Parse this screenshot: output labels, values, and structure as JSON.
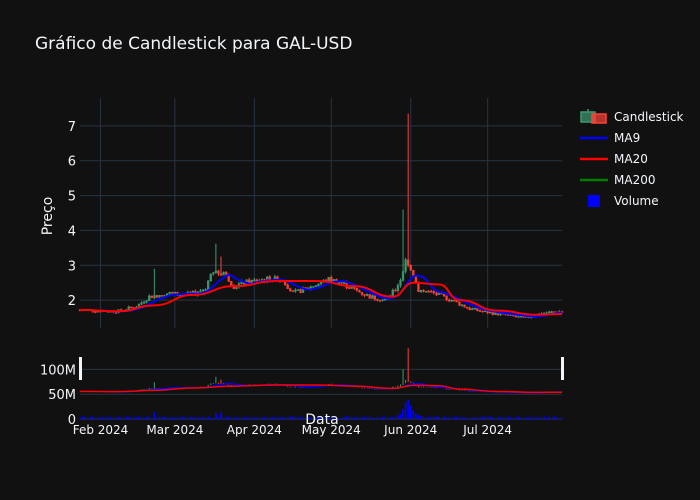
{
  "chart_data": {
    "type": "candlestick",
    "title": "Gráfico de Candlestick para GAL-USD",
    "ylabel": "Preço",
    "xlabel": "Data",
    "price_axis": {
      "ticks": [
        2,
        3,
        4,
        5,
        6,
        7
      ],
      "ylim": [
        1.2,
        7.8
      ]
    },
    "volume_axis": {
      "ticks": [
        0,
        50,
        100
      ],
      "tick_labels": [
        "0",
        "50M",
        "100M"
      ],
      "unit": "M"
    },
    "x_ticks": [
      {
        "date": "2024-02-01",
        "label": "Feb 2024"
      },
      {
        "date": "2024-03-01",
        "label": "Mar 2024"
      },
      {
        "date": "2024-04-01",
        "label": "Apr 2024"
      },
      {
        "date": "2024-05-01",
        "label": "May 2024"
      },
      {
        "date": "2024-06-01",
        "label": "Jun 2024"
      },
      {
        "date": "2024-07-01",
        "label": "Jul 2024"
      }
    ],
    "x_range": [
      "2024-01-24",
      "2024-07-30"
    ],
    "legend": [
      "Candlestick",
      "MA9",
      "MA20",
      "MA200",
      "Volume"
    ],
    "legend_position": "right",
    "colors": {
      "up": "#3d9970",
      "down": "#ff4136",
      "ma9": "#0000ff",
      "ma20": "#ff0000",
      "ma200": "#008000",
      "volume": "#0000ff",
      "grid": "#283442",
      "background": "#111111"
    },
    "ohlc_waypoints": [
      {
        "date": "2024-01-24",
        "close": 1.72
      },
      {
        "date": "2024-01-31",
        "close": 1.7
      },
      {
        "date": "2024-02-08",
        "close": 1.68
      },
      {
        "date": "2024-02-15",
        "close": 1.82
      },
      {
        "date": "2024-02-20",
        "close": 2.1
      },
      {
        "date": "2024-02-27",
        "close": 2.2
      },
      {
        "date": "2024-03-05",
        "close": 2.15
      },
      {
        "date": "2024-03-09",
        "close": 2.2
      },
      {
        "date": "2024-03-13",
        "close": 2.35
      },
      {
        "date": "2024-03-15",
        "close": 2.75
      },
      {
        "date": "2024-03-20",
        "close": 2.8
      },
      {
        "date": "2024-03-24",
        "close": 2.4
      },
      {
        "date": "2024-03-28",
        "close": 2.5
      },
      {
        "date": "2024-04-05",
        "close": 2.6
      },
      {
        "date": "2024-04-12",
        "close": 2.6
      },
      {
        "date": "2024-04-16",
        "close": 2.2
      },
      {
        "date": "2024-04-22",
        "close": 2.35
      },
      {
        "date": "2024-04-30",
        "close": 2.6
      },
      {
        "date": "2024-05-05",
        "close": 2.5
      },
      {
        "date": "2024-05-10",
        "close": 2.3
      },
      {
        "date": "2024-05-16",
        "close": 2.1
      },
      {
        "date": "2024-05-22",
        "close": 2.0
      },
      {
        "date": "2024-05-26",
        "close": 2.3
      },
      {
        "date": "2024-05-28",
        "close": 2.6
      },
      {
        "date": "2024-05-30",
        "close": 3.1
      },
      {
        "date": "2024-06-02",
        "close": 2.75
      },
      {
        "date": "2024-06-04",
        "close": 2.3
      },
      {
        "date": "2024-06-10",
        "close": 2.2
      },
      {
        "date": "2024-06-17",
        "close": 2.0
      },
      {
        "date": "2024-06-24",
        "close": 1.75
      },
      {
        "date": "2024-07-01",
        "close": 1.65
      },
      {
        "date": "2024-07-08",
        "close": 1.58
      },
      {
        "date": "2024-07-15",
        "close": 1.48
      },
      {
        "date": "2024-07-22",
        "close": 1.62
      },
      {
        "date": "2024-07-30",
        "close": 1.68
      }
    ],
    "spikes": [
      {
        "date": "2024-02-22",
        "high": 2.9
      },
      {
        "date": "2024-03-17",
        "high": 3.62
      },
      {
        "date": "2024-03-19",
        "high": 3.25
      },
      {
        "date": "2024-05-29",
        "high": 4.6
      },
      {
        "date": "2024-05-31",
        "high": 7.35
      }
    ],
    "ma20_points": [
      {
        "date": "2024-01-24",
        "value": 1.72
      },
      {
        "date": "2024-02-08",
        "value": 1.68
      },
      {
        "date": "2024-02-22",
        "value": 1.85
      },
      {
        "date": "2024-03-08",
        "value": 2.15
      },
      {
        "date": "2024-03-24",
        "value": 2.4
      },
      {
        "date": "2024-04-10",
        "value": 2.55
      },
      {
        "date": "2024-04-25",
        "value": 2.55
      },
      {
        "date": "2024-05-10",
        "value": 2.4
      },
      {
        "date": "2024-05-25",
        "value": 2.1
      },
      {
        "date": "2024-06-02",
        "value": 2.5
      },
      {
        "date": "2024-06-12",
        "value": 2.45
      },
      {
        "date": "2024-06-20",
        "value": 2.0
      },
      {
        "date": "2024-07-05",
        "value": 1.7
      },
      {
        "date": "2024-07-20",
        "value": 1.58
      },
      {
        "date": "2024-07-30",
        "value": 1.6
      }
    ],
    "volume_peak": {
      "date": "2024-05-31",
      "value": 60
    }
  }
}
